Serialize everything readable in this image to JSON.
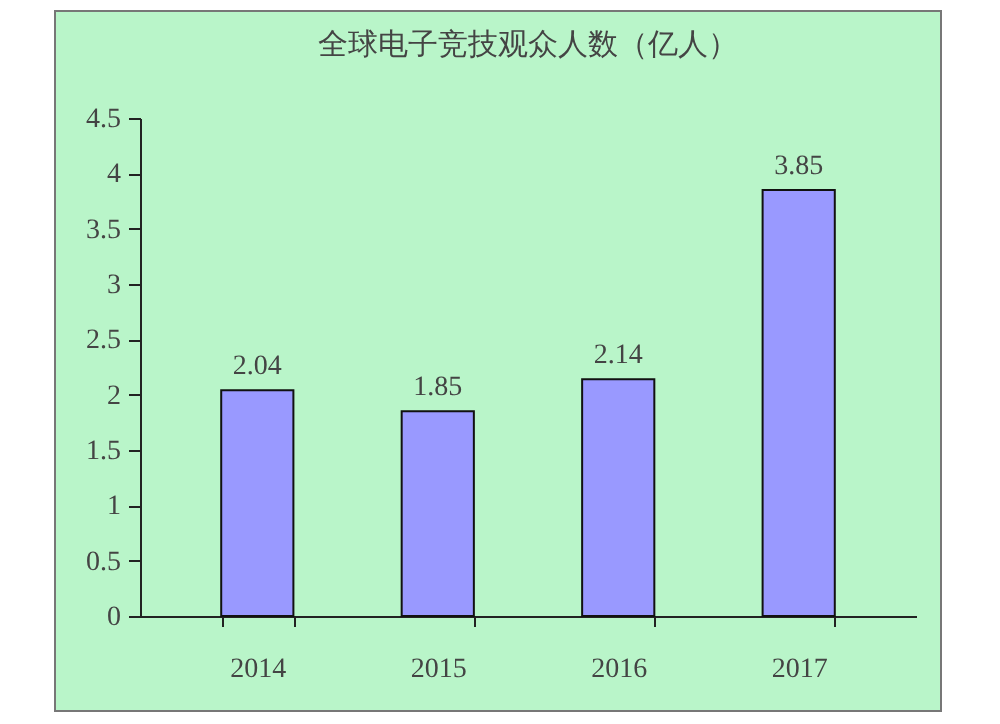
{
  "chart_data": {
    "type": "bar",
    "title": "全球电子竞技观众人数（亿人）",
    "categories": [
      "2014",
      "2015",
      "2016",
      "2017"
    ],
    "values": [
      2.04,
      1.85,
      2.14,
      3.85
    ],
    "color": "#9999ff",
    "ylim": [
      0,
      4.5
    ],
    "yticks": [
      0,
      0.5,
      1,
      1.5,
      2,
      2.5,
      3,
      3.5,
      4,
      4.5
    ],
    "data_labels": true,
    "grid": false
  }
}
